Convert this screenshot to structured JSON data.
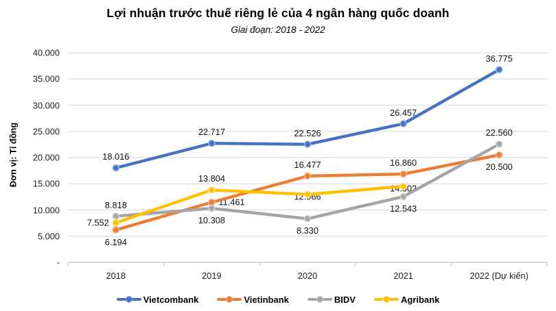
{
  "title": "Lợi nhuận trước thuế riêng lẻ của 4 ngân hàng quốc doanh",
  "subtitle": "Giai đoạn: 2018 - 2022",
  "chart_data": {
    "type": "line",
    "title": "Lợi nhuận trước thuế riêng lẻ của 4 ngân hàng quốc doanh",
    "subtitle": "Giai đoạn: 2018 - 2022",
    "xlabel": "",
    "ylabel": "Đơn vị: Tỉ đồng",
    "categories": [
      "2018",
      "2019",
      "2020",
      "2021",
      "2022 (Dự kiến)"
    ],
    "ylim": [
      0,
      40000
    ],
    "grid": true,
    "legend_position": "bottom",
    "y_ticks": [
      {
        "value": 40000,
        "label": "40.000"
      },
      {
        "value": 35000,
        "label": "35.000"
      },
      {
        "value": 30000,
        "label": "30.000"
      },
      {
        "value": 25000,
        "label": "25.000"
      },
      {
        "value": 20000,
        "label": "20.000"
      },
      {
        "value": 15000,
        "label": "15.000"
      },
      {
        "value": 10000,
        "label": "10.000"
      },
      {
        "value": 5000,
        "label": "5.000"
      },
      {
        "value": 0,
        "label": "-"
      }
    ],
    "series": [
      {
        "name": "Vietcombank",
        "color": "#4472C4",
        "ring": "#93ACDD",
        "values": [
          18016,
          22717,
          22526,
          26457,
          36775
        ],
        "labels": [
          "18.016",
          "22.717",
          "22.526",
          "26.457",
          "36.775"
        ],
        "label_pos": [
          "above",
          "above",
          "above",
          "above",
          "above"
        ]
      },
      {
        "name": "Vietinbank",
        "color": "#ED7D31",
        "ring": "#F4B183",
        "values": [
          6194,
          11461,
          16477,
          16860,
          20500
        ],
        "labels": [
          "6.194",
          "11.461",
          "16.477",
          "16.860",
          "20.500"
        ],
        "label_pos": [
          "below",
          "right",
          "above",
          "above",
          "below"
        ]
      },
      {
        "name": "BIDV",
        "color": "#A5A5A5",
        "ring": "#CECECE",
        "values": [
          8818,
          10308,
          8330,
          12543,
          22560
        ],
        "labels": [
          "8.818",
          "10.308",
          "8.330",
          "12.543",
          "22.560"
        ],
        "label_pos": [
          "above",
          "below",
          "below",
          "below",
          "above"
        ]
      },
      {
        "name": "Agribank",
        "color": "#FFC000",
        "ring": "#FFDD71",
        "values": [
          7552,
          13804,
          12966,
          14502,
          null
        ],
        "labels": [
          "7.552",
          "13.804",
          "12.966",
          "14.502",
          ""
        ],
        "label_pos": [
          "left",
          "above",
          "center",
          "center",
          "none"
        ]
      }
    ]
  },
  "colors": {
    "gridline": "#DADEE6",
    "axis": "#C6CBD5",
    "text": "#000000"
  }
}
